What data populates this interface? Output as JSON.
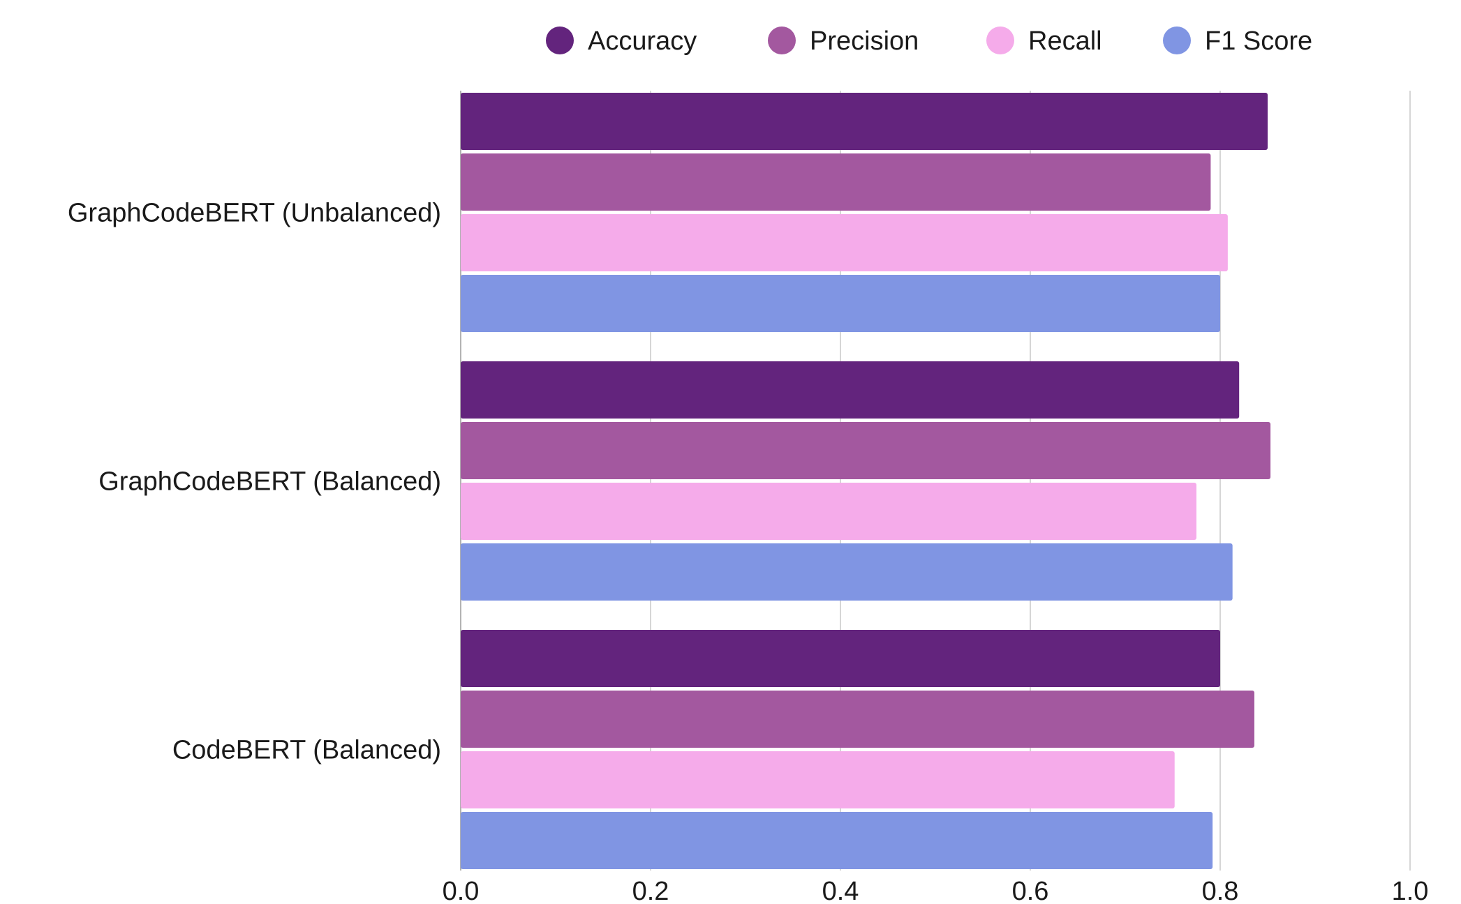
{
  "chart_data": {
    "type": "bar",
    "orientation": "horizontal",
    "categories": [
      "GraphCodeBERT (Unbalanced)",
      "GraphCodeBERT (Balanced)",
      "CodeBERT (Balanced)"
    ],
    "series": [
      {
        "name": "Accuracy",
        "color": "#63247d",
        "values": [
          0.85,
          0.82,
          0.8
        ]
      },
      {
        "name": "Precision",
        "color": "#a3589f",
        "values": [
          0.79,
          0.853,
          0.836
        ]
      },
      {
        "name": "Recall",
        "color": "#f5abea",
        "values": [
          0.808,
          0.775,
          0.752
        ]
      },
      {
        "name": "F1 Score",
        "color": "#8095e3",
        "values": [
          0.8,
          0.813,
          0.792
        ]
      }
    ],
    "xlim": [
      0.0,
      1.0
    ],
    "xticks": [
      "0.0",
      "0.2",
      "0.4",
      "0.6",
      "0.8",
      "1.0"
    ],
    "grid": true,
    "legend_position": "top"
  }
}
